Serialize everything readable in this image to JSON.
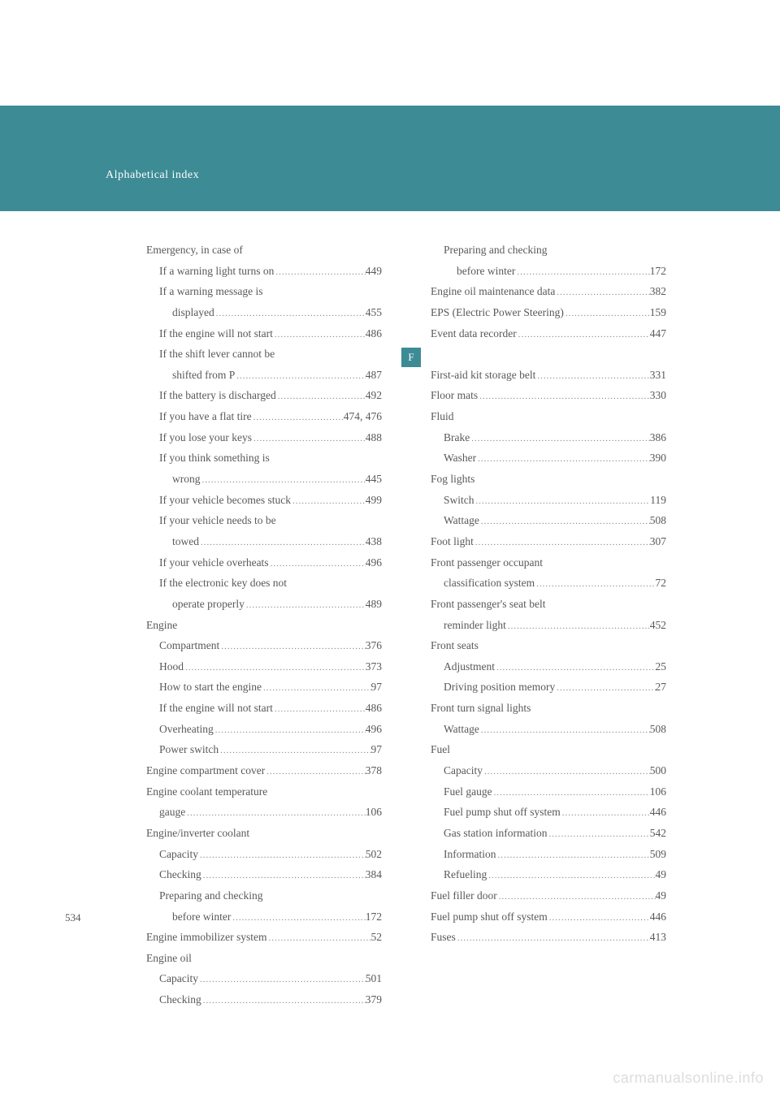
{
  "header": {
    "title": "Alphabetical index",
    "band_color": "#3d8b95"
  },
  "section_tab": {
    "letter": "F"
  },
  "page_number": "534",
  "watermark": "carmanualsonline.info",
  "columns": {
    "left": [
      {
        "label": "Emergency, in case of",
        "page": "",
        "level": 0,
        "nopage": true
      },
      {
        "label": "If a warning light turns on",
        "page": "449",
        "level": 1
      },
      {
        "label": "If a warning message is",
        "page": "",
        "level": 1,
        "nopage": true
      },
      {
        "label": "displayed",
        "page": "455",
        "level": 2
      },
      {
        "label": "If the engine will not start",
        "page": "486",
        "level": 1
      },
      {
        "label": "If the shift lever cannot be",
        "page": "",
        "level": 1,
        "nopage": true
      },
      {
        "label": "shifted from P",
        "page": "487",
        "level": 2
      },
      {
        "label": "If the battery is discharged",
        "page": "492",
        "level": 1
      },
      {
        "label": "If you have a flat tire",
        "page": "474, 476",
        "level": 1
      },
      {
        "label": "If you lose your keys",
        "page": "488",
        "level": 1
      },
      {
        "label": "If you think something is",
        "page": "",
        "level": 1,
        "nopage": true
      },
      {
        "label": "wrong",
        "page": "445",
        "level": 2
      },
      {
        "label": "If your vehicle becomes stuck",
        "page": "499",
        "level": 1
      },
      {
        "label": "If your vehicle needs to be",
        "page": "",
        "level": 1,
        "nopage": true
      },
      {
        "label": "towed",
        "page": "438",
        "level": 2
      },
      {
        "label": "If your vehicle overheats",
        "page": "496",
        "level": 1
      },
      {
        "label": "If the electronic key does not",
        "page": "",
        "level": 1,
        "nopage": true
      },
      {
        "label": "operate properly",
        "page": "489",
        "level": 2
      },
      {
        "label": "Engine",
        "page": "",
        "level": 0,
        "nopage": true
      },
      {
        "label": "Compartment",
        "page": "376",
        "level": 1
      },
      {
        "label": "Hood",
        "page": "373",
        "level": 1
      },
      {
        "label": "How to start the engine",
        "page": "97",
        "level": 1
      },
      {
        "label": "If the engine will not start",
        "page": "486",
        "level": 1
      },
      {
        "label": "Overheating",
        "page": "496",
        "level": 1
      },
      {
        "label": "Power switch",
        "page": "97",
        "level": 1
      },
      {
        "label": "Engine compartment cover",
        "page": "378",
        "level": 0
      },
      {
        "label": "Engine coolant temperature",
        "page": "",
        "level": 0,
        "nopage": true
      },
      {
        "label": "gauge",
        "page": "106",
        "level": 1
      },
      {
        "label": "Engine/inverter coolant",
        "page": "",
        "level": 0,
        "nopage": true
      },
      {
        "label": "Capacity",
        "page": "502",
        "level": 1
      },
      {
        "label": "Checking",
        "page": "384",
        "level": 1
      },
      {
        "label": "Preparing and checking",
        "page": "",
        "level": 1,
        "nopage": true
      },
      {
        "label": "before winter",
        "page": "172",
        "level": 2
      },
      {
        "label": "Engine immobilizer system",
        "page": "52",
        "level": 0
      },
      {
        "label": "Engine oil",
        "page": "",
        "level": 0,
        "nopage": true
      },
      {
        "label": "Capacity",
        "page": "501",
        "level": 1
      },
      {
        "label": "Checking",
        "page": "379",
        "level": 1
      }
    ],
    "right": [
      {
        "label": "Preparing and checking",
        "page": "",
        "level": 1,
        "nopage": true
      },
      {
        "label": "before winter",
        "page": "172",
        "level": 2
      },
      {
        "label": "Engine oil maintenance data",
        "page": "382",
        "level": 0
      },
      {
        "label": "EPS (Electric Power Steering)",
        "page": "159",
        "level": 0
      },
      {
        "label": "Event data recorder",
        "page": "447",
        "level": 0
      },
      {
        "label": "",
        "page": "",
        "level": 0,
        "nopage": true,
        "spacer": true
      },
      {
        "label": "First-aid kit storage belt",
        "page": "331",
        "level": 0
      },
      {
        "label": "Floor mats",
        "page": "330",
        "level": 0
      },
      {
        "label": "Fluid",
        "page": "",
        "level": 0,
        "nopage": true
      },
      {
        "label": "Brake",
        "page": "386",
        "level": 1
      },
      {
        "label": "Washer",
        "page": "390",
        "level": 1
      },
      {
        "label": "Fog lights",
        "page": "",
        "level": 0,
        "nopage": true
      },
      {
        "label": "Switch",
        "page": "119",
        "level": 1
      },
      {
        "label": "Wattage",
        "page": "508",
        "level": 1
      },
      {
        "label": "Foot light",
        "page": "307",
        "level": 0
      },
      {
        "label": "Front passenger occupant",
        "page": "",
        "level": 0,
        "nopage": true
      },
      {
        "label": "classification system",
        "page": "72",
        "level": 1
      },
      {
        "label": "Front passenger's seat belt",
        "page": "",
        "level": 0,
        "nopage": true
      },
      {
        "label": "reminder light",
        "page": "452",
        "level": 1
      },
      {
        "label": "Front seats",
        "page": "",
        "level": 0,
        "nopage": true
      },
      {
        "label": "Adjustment",
        "page": "25",
        "level": 1
      },
      {
        "label": "Driving position memory",
        "page": "27",
        "level": 1
      },
      {
        "label": "Front turn signal lights",
        "page": "",
        "level": 0,
        "nopage": true
      },
      {
        "label": "Wattage",
        "page": "508",
        "level": 1
      },
      {
        "label": "Fuel",
        "page": "",
        "level": 0,
        "nopage": true
      },
      {
        "label": "Capacity",
        "page": "500",
        "level": 1
      },
      {
        "label": "Fuel gauge",
        "page": "106",
        "level": 1
      },
      {
        "label": "Fuel pump shut off system",
        "page": "446",
        "level": 1
      },
      {
        "label": "Gas station information",
        "page": "542",
        "level": 1
      },
      {
        "label": "Information",
        "page": "509",
        "level": 1
      },
      {
        "label": "Refueling",
        "page": "49",
        "level": 1
      },
      {
        "label": "Fuel filler door",
        "page": "49",
        "level": 0
      },
      {
        "label": "Fuel pump shut off system",
        "page": "446",
        "level": 0
      },
      {
        "label": "Fuses",
        "page": "413",
        "level": 0
      }
    ]
  }
}
